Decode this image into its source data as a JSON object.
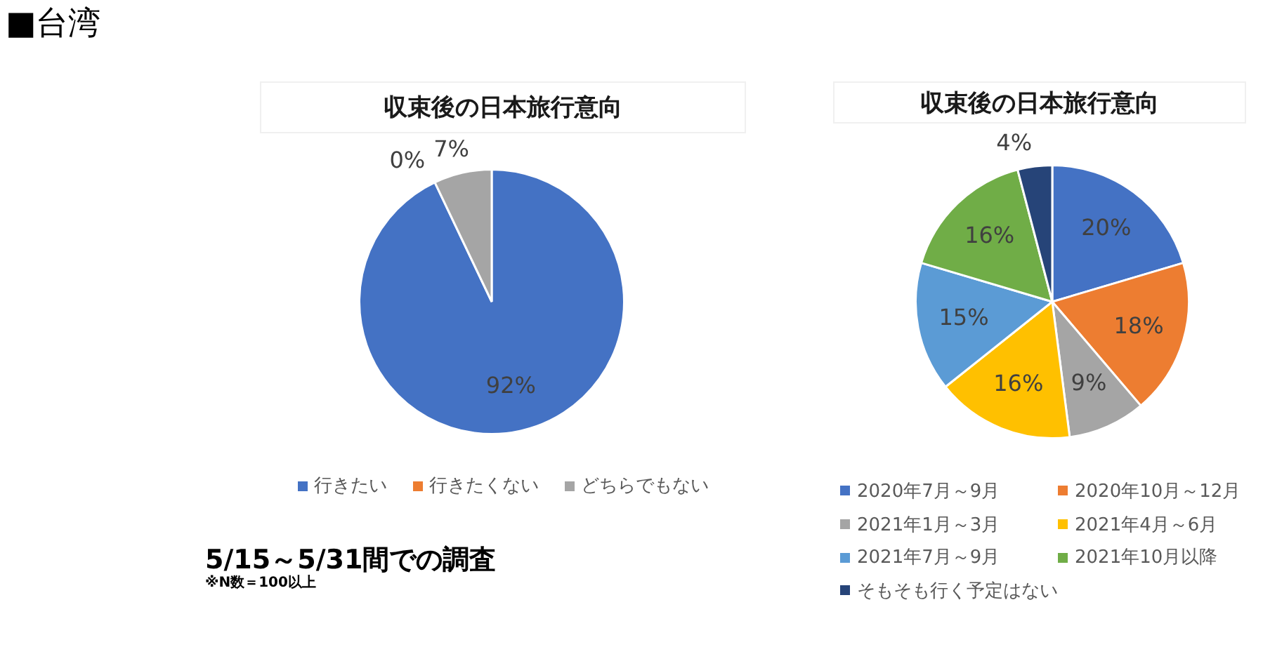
{
  "chart_data": [
    {
      "type": "pie",
      "title": "収束後の日本旅行意向",
      "categories": [
        "行きたい",
        "行きたくない",
        "どちらでもない"
      ],
      "values": [
        92,
        0,
        7
      ],
      "colors": [
        "#4472c4",
        "#ed7d31",
        "#a5a5a5"
      ],
      "value_labels": [
        "92%",
        "0%",
        "7%"
      ],
      "legend": "bottom",
      "annotations": [
        "■台湾",
        "5/15～5/31間での調査",
        "※N数＝100以上"
      ]
    },
    {
      "type": "pie",
      "title": "収束後の日本旅行意向",
      "categories": [
        "2020年7月～9月",
        "2020年10月～12月",
        "2021年1月～3月",
        "2021年4月～6月",
        "2021年7月～9月",
        "2021年10月以降",
        "そもそも行く予定はない"
      ],
      "values": [
        20,
        18,
        9,
        16,
        15,
        16,
        4
      ],
      "colors": [
        "#4472c4",
        "#ed7d31",
        "#a5a5a5",
        "#ffc000",
        "#5b9bd5",
        "#70ad47",
        "#264478"
      ],
      "value_labels": [
        "20%",
        "18%",
        "9%",
        "16%",
        "15%",
        "16%",
        "4%"
      ],
      "legend": "bottom"
    }
  ]
}
